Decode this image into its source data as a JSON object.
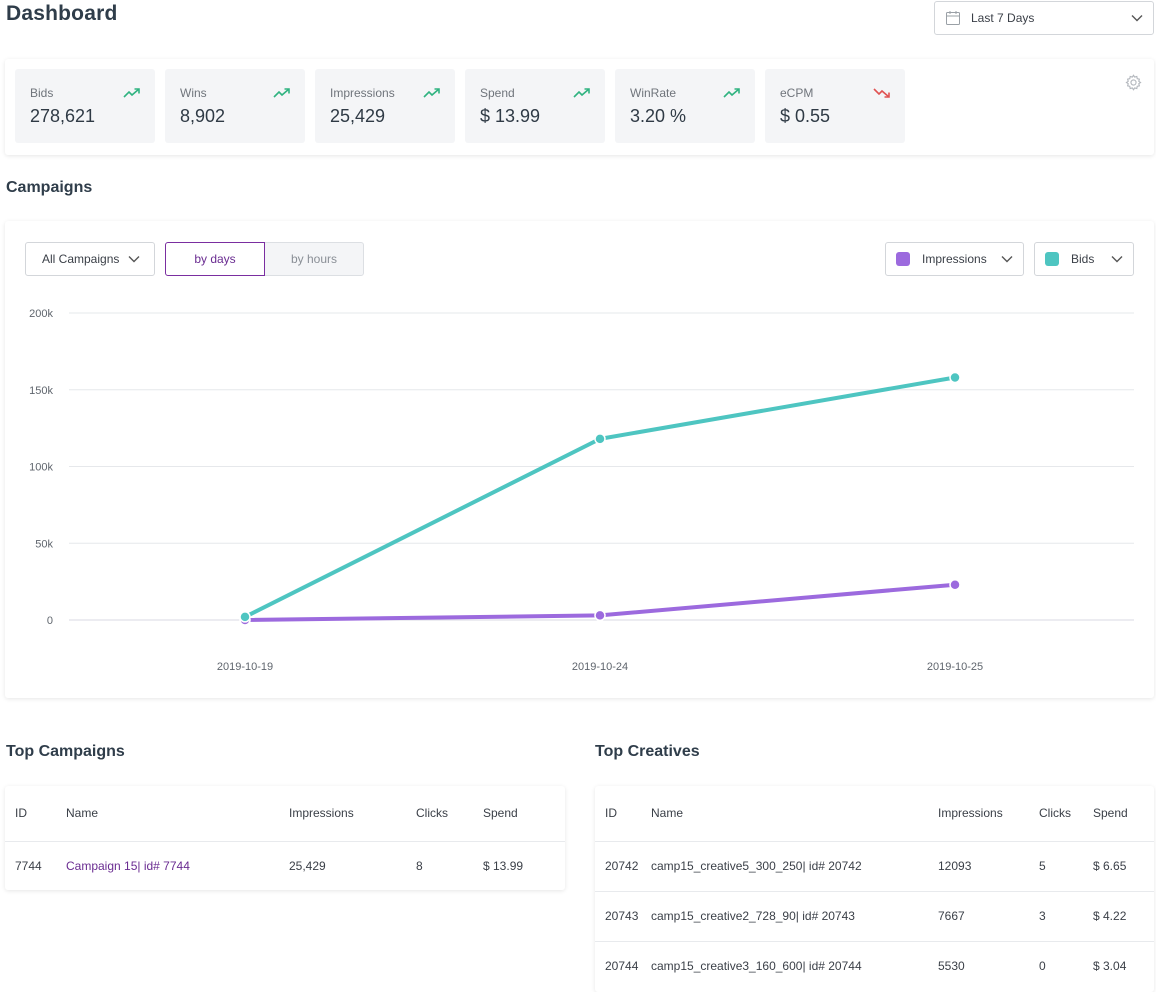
{
  "header": {
    "title": "Dashboard",
    "date_range": "Last 7 Days"
  },
  "stats": [
    {
      "name": "Bids",
      "value": "278,621",
      "trend": "up"
    },
    {
      "name": "Wins",
      "value": "8,902",
      "trend": "up"
    },
    {
      "name": "Impressions",
      "value": "25,429",
      "trend": "up"
    },
    {
      "name": "Spend",
      "value": "$ 13.99",
      "trend": "up"
    },
    {
      "name": "WinRate",
      "value": "3.20 %",
      "trend": "up"
    },
    {
      "name": "eCPM",
      "value": "$ 0.55",
      "trend": "down"
    }
  ],
  "colors": {
    "accent": "#6a2c91",
    "trend_up": "#2fb380",
    "trend_down": "#e05252",
    "impressions": "#9c6ade",
    "bids": "#4ec5c1"
  },
  "campaigns": {
    "title": "Campaigns",
    "filter": "All Campaigns",
    "toggle_days": "by days",
    "toggle_hours": "by hours",
    "metric1": "Impressions",
    "metric2": "Bids"
  },
  "chart_data": {
    "type": "line",
    "x": [
      "2019-10-19",
      "2019-10-24",
      "2019-10-25"
    ],
    "series": [
      {
        "name": "Impressions",
        "values": [
          0,
          3000,
          23000
        ]
      },
      {
        "name": "Bids",
        "values": [
          2000,
          118000,
          158000
        ]
      }
    ],
    "ylim": [
      0,
      200000
    ],
    "yticks": [
      "0",
      "50k",
      "100k",
      "150k",
      "200k"
    ],
    "grid": true
  },
  "top_campaigns": {
    "title": "Top Campaigns",
    "columns": [
      "ID",
      "Name",
      "Impressions",
      "Clicks",
      "Spend"
    ],
    "rows": [
      [
        "7744",
        "Campaign 15| id# 7744",
        "25,429",
        "8",
        "$ 13.99"
      ]
    ]
  },
  "top_creatives": {
    "title": "Top Creatives",
    "columns": [
      "ID",
      "Name",
      "Impressions",
      "Clicks",
      "Spend"
    ],
    "rows": [
      [
        "20742",
        "camp15_creative5_300_250| id# 20742",
        "12093",
        "5",
        "$ 6.65"
      ],
      [
        "20743",
        "camp15_creative2_728_90| id# 20743",
        "7667",
        "3",
        "$ 4.22"
      ],
      [
        "20744",
        "camp15_creative3_160_600| id# 20744",
        "5530",
        "0",
        "$ 3.04"
      ]
    ]
  }
}
